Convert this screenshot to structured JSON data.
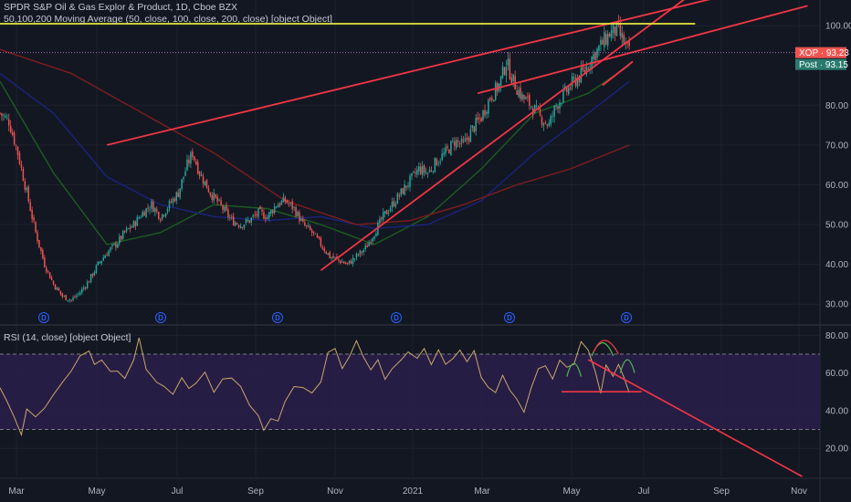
{
  "legend": {
    "title": "SPDR S&P Oil & Gas Explor & Product, 1D, Cboe BZX",
    "ma": "50,100,200 Moving Average (50, close, 100, close, 200, close) [object Object]",
    "rsi": "RSI (14, close) [object Object]"
  },
  "colors": {
    "background": "#131722",
    "up": "#26a69a",
    "down": "#ef5350",
    "ma50": "#1b5e20",
    "ma100": "#1a237e",
    "ma200": "#7f1d1d",
    "trend": "#f23645",
    "flat": "#e6e63c",
    "rsi": "#c9a66b",
    "rsi_band": "#2a1f4a",
    "arc_green": "#4caf50"
  },
  "tags": {
    "price": {
      "label": "XOP",
      "value": "93.23"
    },
    "post": {
      "label": "Post",
      "value": "93.15"
    }
  },
  "chart_data": [
    {
      "type": "candlestick",
      "title": "SPDR S&P Oil & Gas Explor & Product, 1D, Cboe BZX",
      "ylim": [
        25,
        106
      ],
      "yticks": [
        30,
        40,
        50,
        60,
        70,
        80,
        100
      ],
      "ytick_labels": [
        "30.00",
        "40.00",
        "50.00",
        "60.00",
        "70.00",
        "80.00",
        "100.00"
      ],
      "x_ticks": [
        "Mar",
        "May",
        "Jul",
        "Sep",
        "Nov",
        "2021",
        "Mar",
        "May",
        "Jul",
        "Sep",
        "Nov"
      ],
      "close_path": [
        [
          0,
          78
        ],
        [
          5,
          76
        ],
        [
          10,
          68
        ],
        [
          15,
          58
        ],
        [
          20,
          48
        ],
        [
          25,
          40
        ],
        [
          30,
          35
        ],
        [
          35,
          32
        ],
        [
          40,
          31
        ],
        [
          45,
          33
        ],
        [
          50,
          36
        ],
        [
          55,
          40
        ],
        [
          60,
          43
        ],
        [
          65,
          45
        ],
        [
          70,
          48
        ],
        [
          75,
          50
        ],
        [
          80,
          53
        ],
        [
          85,
          55
        ],
        [
          90,
          52
        ],
        [
          95,
          55
        ],
        [
          100,
          58
        ],
        [
          105,
          65
        ],
        [
          108,
          68
        ],
        [
          112,
          63
        ],
        [
          118,
          58
        ],
        [
          125,
          54
        ],
        [
          130,
          51
        ],
        [
          135,
          50
        ],
        [
          140,
          51
        ],
        [
          145,
          53
        ],
        [
          150,
          52
        ],
        [
          155,
          55
        ],
        [
          160,
          56
        ],
        [
          165,
          54
        ],
        [
          170,
          50
        ],
        [
          175,
          48
        ],
        [
          180,
          45
        ],
        [
          185,
          42
        ],
        [
          190,
          41
        ],
        [
          195,
          40
        ],
        [
          200,
          42
        ],
        [
          205,
          44
        ],
        [
          210,
          48
        ],
        [
          215,
          52
        ],
        [
          220,
          55
        ],
        [
          225,
          58
        ],
        [
          230,
          61
        ],
        [
          235,
          64
        ],
        [
          240,
          63
        ],
        [
          245,
          66
        ],
        [
          250,
          68
        ],
        [
          255,
          71
        ],
        [
          260,
          70
        ],
        [
          265,
          74
        ],
        [
          270,
          77
        ],
        [
          275,
          82
        ],
        [
          280,
          85
        ],
        [
          284,
          91
        ],
        [
          288,
          86
        ],
        [
          293,
          82
        ],
        [
          298,
          80
        ],
        [
          303,
          77
        ],
        [
          308,
          75
        ],
        [
          312,
          80
        ],
        [
          317,
          83
        ],
        [
          322,
          86
        ],
        [
          327,
          88
        ],
        [
          332,
          92
        ],
        [
          337,
          95
        ],
        [
          342,
          98
        ],
        [
          346,
          99
        ],
        [
          350,
          96
        ],
        [
          353,
          93.2
        ]
      ],
      "series": [
        {
          "name": "MA50",
          "values": [
            [
              0,
              86
            ],
            [
              30,
              63
            ],
            [
              60,
              45
            ],
            [
              90,
              48
            ],
            [
              120,
              55
            ],
            [
              150,
              54
            ],
            [
              180,
              50
            ],
            [
              210,
              45
            ],
            [
              240,
              52
            ],
            [
              270,
              64
            ],
            [
              300,
              78
            ],
            [
              330,
              83
            ],
            [
              353,
              90
            ]
          ]
        },
        {
          "name": "MA100",
          "values": [
            [
              0,
              88
            ],
            [
              30,
              78
            ],
            [
              60,
              62
            ],
            [
              90,
              55
            ],
            [
              120,
              52
            ],
            [
              150,
              51
            ],
            [
              180,
              52
            ],
            [
              210,
              49
            ],
            [
              240,
              50
            ],
            [
              270,
              56
            ],
            [
              300,
              68
            ],
            [
              330,
              78
            ],
            [
              353,
              86
            ]
          ]
        },
        {
          "name": "MA200",
          "values": [
            [
              0,
              94
            ],
            [
              40,
              88
            ],
            [
              80,
              78
            ],
            [
              120,
              68
            ],
            [
              160,
              56
            ],
            [
              200,
              50
            ],
            [
              230,
              51
            ],
            [
              260,
              55
            ],
            [
              290,
              60
            ],
            [
              320,
              64
            ],
            [
              353,
              70
            ]
          ]
        }
      ],
      "trendlines": [
        {
          "from": [
            60,
            70
          ],
          "to": [
            420,
            109
          ]
        },
        {
          "from": [
            180,
            38.5
          ],
          "to": [
            400,
            112
          ]
        },
        {
          "from": [
            268,
            83
          ],
          "to": [
            453,
            105
          ]
        },
        {
          "from": [
            0,
            100.5
          ],
          "to": [
            390,
            100.5
          ]
        },
        {
          "from": [
            338,
            85
          ],
          "to": [
            355,
            91
          ]
        }
      ],
      "last": 93.23,
      "post": 93.15
    },
    {
      "type": "line",
      "title": "RSI (14, close) [object Object]",
      "ylim": [
        5,
        85
      ],
      "yticks": [
        20,
        40,
        60,
        80
      ],
      "ytick_labels": [
        "20.00",
        "40.00",
        "60.00",
        "80.00"
      ],
      "bands": [
        30,
        70
      ],
      "values": [
        [
          0,
          52
        ],
        [
          4,
          44
        ],
        [
          8,
          36
        ],
        [
          12,
          27
        ],
        [
          15,
          40
        ],
        [
          20,
          36
        ],
        [
          25,
          42
        ],
        [
          30,
          50
        ],
        [
          35,
          56
        ],
        [
          40,
          62
        ],
        [
          45,
          68
        ],
        [
          50,
          72
        ],
        [
          53,
          64
        ],
        [
          57,
          66
        ],
        [
          62,
          60
        ],
        [
          66,
          62
        ],
        [
          70,
          58
        ],
        [
          75,
          66
        ],
        [
          78,
          80
        ],
        [
          82,
          62
        ],
        [
          88,
          54
        ],
        [
          92,
          52
        ],
        [
          97,
          50
        ],
        [
          102,
          58
        ],
        [
          106,
          51
        ],
        [
          110,
          55
        ],
        [
          115,
          60
        ],
        [
          120,
          50
        ],
        [
          125,
          56
        ],
        [
          130,
          58
        ],
        [
          135,
          54
        ],
        [
          140,
          42
        ],
        [
          145,
          37
        ],
        [
          148,
          30
        ],
        [
          152,
          35
        ],
        [
          156,
          33
        ],
        [
          160,
          45
        ],
        [
          165,
          54
        ],
        [
          170,
          51
        ],
        [
          175,
          48
        ],
        [
          180,
          56
        ],
        [
          184,
          70
        ],
        [
          188,
          74
        ],
        [
          192,
          62
        ],
        [
          196,
          70
        ],
        [
          200,
          77
        ],
        [
          204,
          68
        ],
        [
          208,
          63
        ],
        [
          212,
          67
        ],
        [
          216,
          56
        ],
        [
          220,
          63
        ],
        [
          225,
          67
        ],
        [
          229,
          72
        ],
        [
          234,
          69
        ],
        [
          238,
          72
        ],
        [
          242,
          64
        ],
        [
          246,
          71
        ],
        [
          250,
          66
        ],
        [
          254,
          68
        ],
        [
          258,
          73
        ],
        [
          262,
          66
        ],
        [
          266,
          71
        ],
        [
          270,
          58
        ],
        [
          274,
          52
        ],
        [
          278,
          50
        ],
        [
          282,
          58
        ],
        [
          286,
          50
        ],
        [
          290,
          46
        ],
        [
          294,
          38
        ],
        [
          298,
          52
        ],
        [
          302,
          62
        ],
        [
          306,
          65
        ],
        [
          310,
          58
        ],
        [
          314,
          68
        ],
        [
          318,
          62
        ],
        [
          322,
          66
        ],
        [
          326,
          77
        ],
        [
          330,
          72
        ],
        [
          334,
          60
        ],
        [
          337,
          48
        ],
        [
          340,
          64
        ],
        [
          344,
          58
        ],
        [
          347,
          66
        ],
        [
          350,
          58
        ],
        [
          353,
          48
        ]
      ]
    }
  ]
}
